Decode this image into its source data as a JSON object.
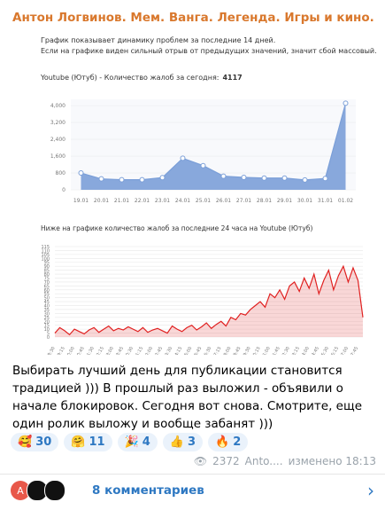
{
  "header": {
    "title": "Антон Логвинов. Мем. Ванга. Легенда. Игры и кино."
  },
  "chart_data": [
    {
      "type": "area",
      "note_lines": [
        "График показывает динамику проблем за последние 14 дней.",
        "Если на графике виден сильный отрыв от предыдущих значений, значит сбой массовый."
      ],
      "title": "Youtube (Ютуб) - Количество жалоб за сегодня:",
      "title_value": "4117",
      "categories": [
        "19.01",
        "20.01",
        "21.01",
        "22.01",
        "23.01",
        "24.01",
        "25.01",
        "26.01",
        "27.01",
        "28.01",
        "29.01",
        "30.01",
        "31.01",
        "01.02"
      ],
      "values": [
        800,
        520,
        480,
        480,
        580,
        1500,
        1150,
        650,
        590,
        560,
        560,
        470,
        540,
        4117
      ],
      "color": "#7b9fd8",
      "marker": true,
      "ylim": [
        0,
        4300
      ],
      "yticks": [
        0,
        800,
        {
          "value": 1600,
          "label": "1,600"
        },
        {
          "value": 2400,
          "label": "2,400"
        },
        {
          "value": 3200,
          "label": "3,200"
        },
        {
          "value": 4000,
          "label": "4,000"
        }
      ],
      "grid": true
    },
    {
      "type": "area",
      "title": "Ниже на графике количество жалоб за последние 24 часа на Youtube (Ютуб)",
      "categories": [
        "18:30",
        null,
        "19:15",
        null,
        "20:00",
        null,
        "20:45",
        null,
        "21:30",
        null,
        "22:15",
        null,
        "23:00",
        null,
        "23:45",
        null,
        "00:30",
        null,
        "01:15",
        null,
        "02:00",
        null,
        "02:45",
        null,
        "03:30",
        null,
        "04:15",
        null,
        "05:00",
        null,
        "05:45",
        null,
        "06:30",
        null,
        "07:15",
        null,
        "08:00",
        null,
        "08:45",
        null,
        "09:30",
        null,
        "10:15",
        null,
        "11:00",
        null,
        "11:45",
        null,
        "12:30",
        null,
        "13:15",
        null,
        "14:00",
        null,
        "14:45",
        null,
        "15:30",
        null,
        "16:15",
        null,
        "17:00",
        null,
        "17:45",
        null
      ],
      "values": [
        5,
        12,
        8,
        3,
        10,
        7,
        4,
        9,
        12,
        6,
        10,
        14,
        8,
        11,
        9,
        13,
        10,
        7,
        12,
        6,
        9,
        11,
        8,
        5,
        14,
        10,
        7,
        12,
        15,
        9,
        13,
        18,
        11,
        16,
        20,
        14,
        25,
        22,
        30,
        28,
        35,
        40,
        45,
        38,
        55,
        50,
        60,
        48,
        65,
        70,
        58,
        75,
        62,
        80,
        55,
        72,
        85,
        60,
        78,
        90,
        70,
        88,
        72,
        25
      ],
      "color": "#e02020",
      "marker": false,
      "ylim": [
        0,
        115
      ],
      "yticks": [
        0,
        5,
        10,
        15,
        20,
        25,
        30,
        35,
        40,
        45,
        50,
        55,
        60,
        65,
        70,
        75,
        80,
        85,
        90,
        95,
        100,
        105,
        110,
        115
      ],
      "grid": true
    }
  ],
  "message": {
    "text": "Выбирать лучший день для публикации становится традицией ))) В прошлый раз выложил - объявили о начале блокировок. Сегодня вот снова. Смотрите, еще один ролик выложу и вообще забанят )))",
    "reactions": [
      {
        "emoji": "🥰",
        "count": "30"
      },
      {
        "emoji": "🤗",
        "count": "11"
      },
      {
        "emoji": "🎉",
        "count": "4"
      },
      {
        "emoji": "👍",
        "count": "3"
      },
      {
        "emoji": "🔥",
        "count": "2"
      }
    ],
    "views": "2372",
    "author": "Anto....",
    "edited": "изменено 18:13"
  },
  "comments": {
    "avatar": "А",
    "label": "8 комментариев"
  }
}
